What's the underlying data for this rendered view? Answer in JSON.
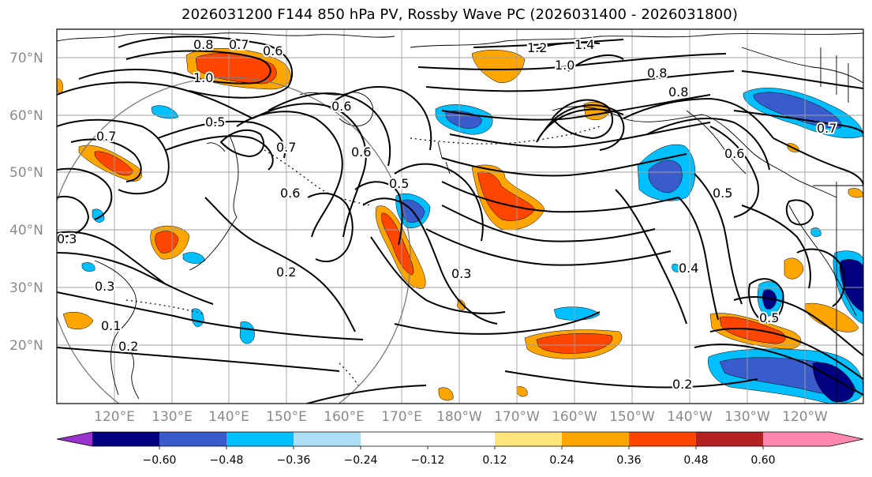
{
  "title": "2026031200 F144 850 hPa PV, Rossby Wave PC (2026031400 - 2026031800)",
  "colors": {
    "neg060": "#9932CC",
    "neg048": "#000080",
    "neg036": "#3A5BCB",
    "neg024": "#00BFFF",
    "neg012": "#ADDFF7",
    "neutral": "#FFFFFF",
    "pos012": "#FFE57A",
    "pos024": "#FFA500",
    "pos036": "#FF4500",
    "pos048": "#B22222",
    "pos060": "#FF88B0"
  },
  "lat_labels": [
    "70°N",
    "60°N",
    "50°N",
    "40°N",
    "30°N",
    "20°N"
  ],
  "lon_labels": [
    "120°E",
    "130°E",
    "140°E",
    "150°E",
    "160°E",
    "170°E",
    "180°W",
    "170°W",
    "160°W",
    "150°W",
    "140°W",
    "130°W",
    "120°W"
  ],
  "colorbar": {
    "ticks": [
      "−0.60",
      "−0.48",
      "−0.36",
      "−0.24",
      "−0.12",
      "0.12",
      "0.24",
      "0.36",
      "0.48",
      "0.60"
    ]
  },
  "contour_labels": [
    "0.8",
    "0.7",
    "0.6",
    "1.0",
    "1.2",
    "1.4",
    "1.0",
    "0.8",
    "0.8",
    "0.5",
    "0.6",
    "0.7",
    "0.6",
    "0.5",
    "0.5",
    "0.3",
    "0.2",
    "0.3",
    "0.4",
    "0.5",
    "0.2",
    "0.2",
    "0.1",
    "0.7",
    "0.6",
    "0.3",
    "0.7",
    "0.6"
  ]
}
